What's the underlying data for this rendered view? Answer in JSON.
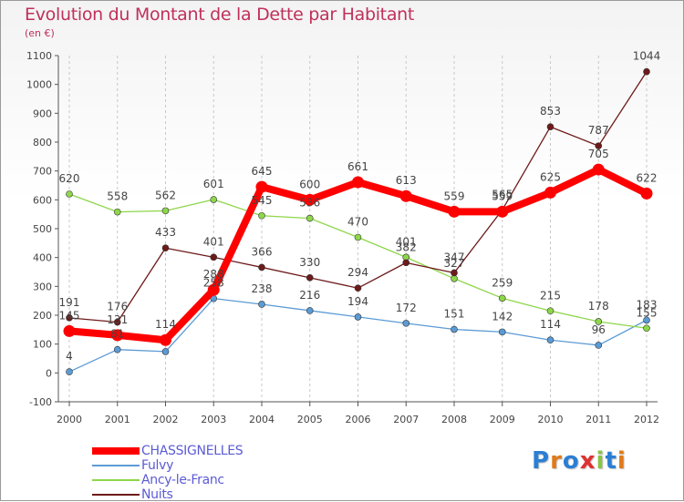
{
  "title": "Evolution du Montant de la Dette par Habitant",
  "unit": "(en €)",
  "logo": "Proxiti",
  "chart_data": {
    "type": "line",
    "categories": [
      "2000",
      "2001",
      "2002",
      "2003",
      "2004",
      "2005",
      "2006",
      "2007",
      "2008",
      "2009",
      "2010",
      "2011",
      "2012"
    ],
    "ylim": [
      -100,
      1100
    ],
    "yticks": [
      -100,
      0,
      100,
      200,
      300,
      400,
      500,
      600,
      700,
      800,
      900,
      1000,
      1100
    ],
    "ytick_labels": [
      "-100",
      "0",
      "100",
      "200",
      "300",
      "400",
      "500",
      "600",
      "700",
      "800",
      "900",
      "1000",
      "1100"
    ],
    "grid": "vertical-dashed",
    "legend_position": "bottom-left",
    "series": [
      {
        "name": "CHASSIGNELLES",
        "color": "#ff0000",
        "values": [
          145,
          131,
          114,
          288,
          645,
          600,
          661,
          613,
          559,
          559,
          625,
          705,
          622
        ],
        "labels": [
          "145",
          "131",
          "114",
          "288",
          "645",
          "600",
          "661",
          "613",
          "559",
          "559",
          "625",
          "705",
          "622"
        ]
      },
      {
        "name": "Fulvy",
        "color": "#5b9bd5",
        "values": [
          4,
          81,
          74,
          258,
          238,
          216,
          194,
          172,
          151,
          142,
          114,
          96,
          183
        ],
        "labels": [
          "4",
          "81",
          "",
          "258",
          "238",
          "216",
          "194",
          "172",
          "151",
          "142",
          "114",
          "96",
          "183"
        ]
      },
      {
        "name": "Ancy-le-Franc",
        "color": "#8ed64a",
        "values": [
          620,
          558,
          562,
          601,
          545,
          536,
          470,
          401,
          327,
          259,
          215,
          178,
          155
        ],
        "labels": [
          "620",
          "558",
          "562",
          "601",
          "545",
          "536",
          "470",
          "401",
          "327",
          "259",
          "215",
          "178",
          "155"
        ]
      },
      {
        "name": "Nuits",
        "color": "#6e1a1a",
        "values": [
          191,
          176,
          433,
          401,
          366,
          330,
          294,
          382,
          347,
          565,
          853,
          787,
          1044
        ],
        "labels": [
          "191",
          "176",
          "433",
          "401",
          "366",
          "330",
          "294",
          "382",
          "347",
          "565",
          "853",
          "787",
          "1044"
        ]
      }
    ]
  }
}
